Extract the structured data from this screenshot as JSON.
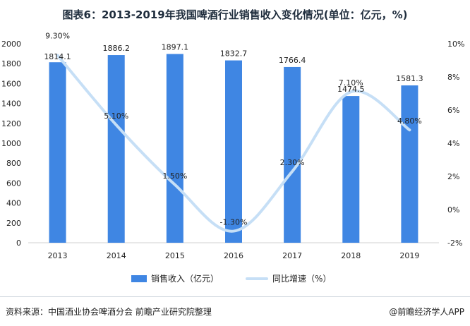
{
  "chart_data": {
    "type": "bar",
    "title": "图表6：2013-2019年我国啤酒行业销售收入变化情况(单位：亿元，%)",
    "categories": [
      "2013",
      "2014",
      "2015",
      "2016",
      "2017",
      "2018",
      "2019"
    ],
    "series": [
      {
        "name": "销售收入（亿元）",
        "type": "bar",
        "axis": "left",
        "values": [
          1814.1,
          1886.2,
          1897.1,
          1832.7,
          1766.4,
          1474.5,
          1581.3
        ],
        "labels": [
          "1814.1",
          "1886.2",
          "1897.1",
          "1832.7",
          "1766.4",
          "1474.5",
          "1581.3"
        ],
        "color": "#3f86e3"
      },
      {
        "name": "同比增速（%）",
        "type": "line",
        "axis": "right",
        "values": [
          9.3,
          5.1,
          1.5,
          -1.3,
          2.3,
          7.1,
          4.8
        ],
        "labels": [
          "9.30%",
          "5.10%",
          "1.50%",
          "-1.30%",
          "2.30%",
          "7.10%",
          "4.80%"
        ],
        "color": "#c6dff6"
      }
    ],
    "y_left": {
      "min": 0,
      "max": 2000,
      "ticks": [
        "0",
        "200",
        "400",
        "600",
        "800",
        "1000",
        "1200",
        "1400",
        "1600",
        "1800",
        "2000"
      ]
    },
    "y_right": {
      "min": -2,
      "max": 10,
      "ticks": [
        "-2%",
        "0%",
        "2%",
        "4%",
        "6%",
        "8%",
        "10%"
      ]
    },
    "legend_position": "bottom"
  },
  "footer": {
    "source": "资料来源：中国酒业协会啤酒分会 前瞻产业研究院整理",
    "credit": "@前瞻经济学人APP"
  }
}
